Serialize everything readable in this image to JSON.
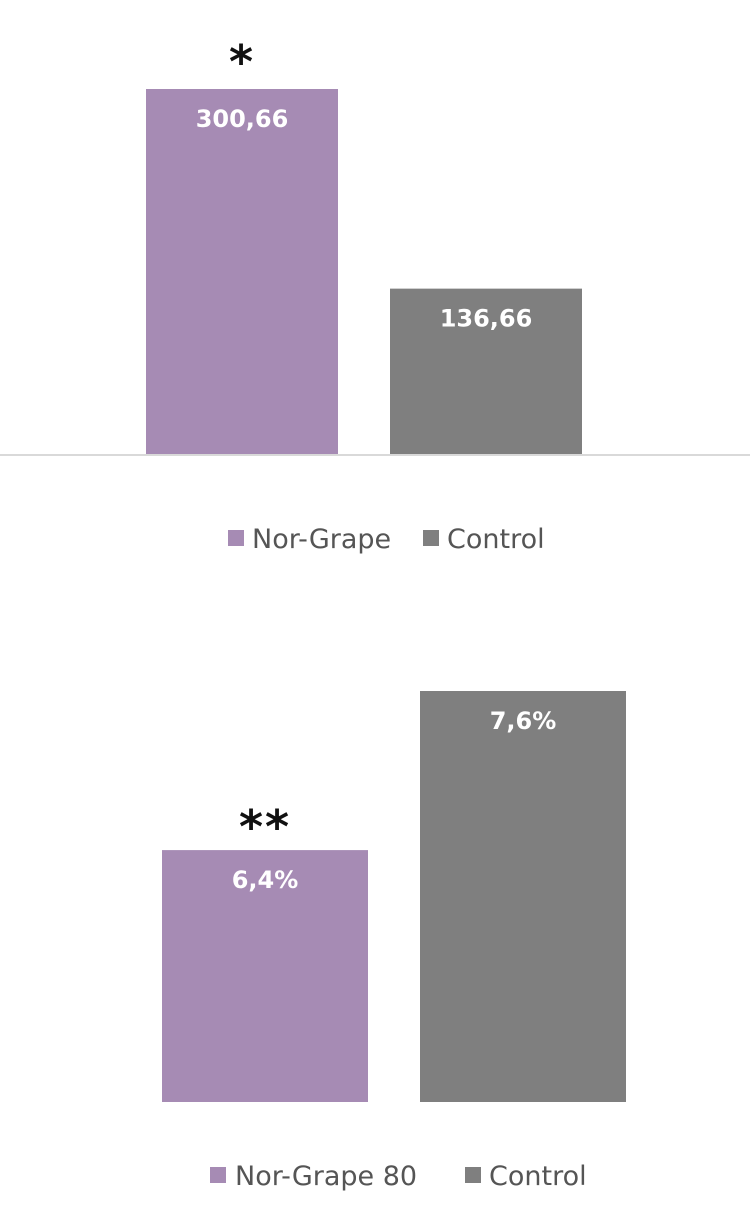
{
  "chart_data": [
    {
      "type": "bar",
      "categories": [
        "Nor-Grape",
        "Control"
      ],
      "values": [
        300.66,
        136.66
      ],
      "value_labels": [
        "300,66",
        "136,66"
      ],
      "significance": [
        "*",
        ""
      ],
      "legend": [
        "Nor-Grape",
        "Control"
      ],
      "colors": [
        "#A68BB4",
        "#7F7F7F"
      ],
      "legend_position": "bottom",
      "grid": false,
      "ylim": [
        0,
        300.66
      ]
    },
    {
      "type": "bar",
      "categories": [
        "Nor-Grape 80",
        "Control"
      ],
      "values": [
        6.4,
        7.6
      ],
      "value_labels": [
        "6,4%",
        "7,6%"
      ],
      "significance": [
        "**",
        ""
      ],
      "legend": [
        "Nor-Grape 80",
        "Control"
      ],
      "colors": [
        "#A68BB4",
        "#7F7F7F"
      ],
      "legend_position": "bottom",
      "grid": false,
      "ylim": [
        4.5,
        7.6
      ]
    }
  ]
}
